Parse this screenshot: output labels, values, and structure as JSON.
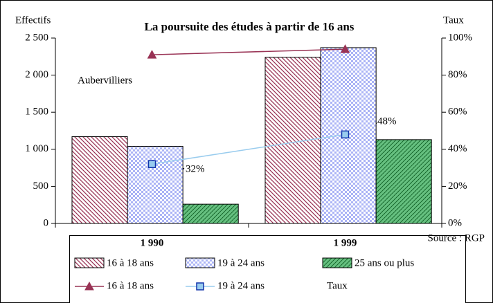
{
  "chart_data": {
    "type": "bar",
    "title": "La poursuite des études à partir de 16 ans",
    "ylabel": "Effectifs",
    "y2label": "Taux",
    "categories": [
      "1 990",
      "1 999"
    ],
    "series": [
      {
        "name": "16 à 18 ans",
        "type": "bar",
        "color": "#993355",
        "values": [
          1170,
          2240
        ]
      },
      {
        "name": "19 à 24 ans",
        "type": "bar",
        "color": "#6677ee",
        "values": [
          1040,
          2370
        ]
      },
      {
        "name": "25 ans ou plus",
        "type": "bar",
        "color": "#33aa55",
        "values": [
          260,
          1130
        ]
      },
      {
        "name": "16 à 18 ans",
        "type": "line",
        "axis": "y2",
        "color": "#993355",
        "marker": "triangle",
        "values": [
          91,
          94
        ]
      },
      {
        "name": "19 à 24 ans",
        "type": "line",
        "axis": "y2",
        "color": "#99ccee",
        "marker": "square",
        "values": [
          32,
          48
        ]
      }
    ],
    "ylim": [
      0,
      2500
    ],
    "yticks": [
      0,
      500,
      {
        "value": 1000,
        "label": "1 000"
      },
      {
        "value": 1500,
        "label": "1 500"
      },
      {
        "value": 2000,
        "label": "2 000"
      },
      {
        "value": 2500,
        "label": "2 500"
      }
    ],
    "y2lim": [
      0,
      100
    ],
    "y2ticks": [
      {
        "value": 0,
        "label": "0%"
      },
      {
        "value": 20,
        "label": "20%"
      },
      {
        "value": 40,
        "label": "40%"
      },
      {
        "value": 60,
        "label": "60%"
      },
      {
        "value": 80,
        "label": "80%"
      },
      {
        "value": 100,
        "label": "100%"
      }
    ],
    "annotations": [
      "Aubervilliers",
      "32%",
      "48%"
    ],
    "source": "Source : RGP",
    "legend_note": "Taux"
  }
}
